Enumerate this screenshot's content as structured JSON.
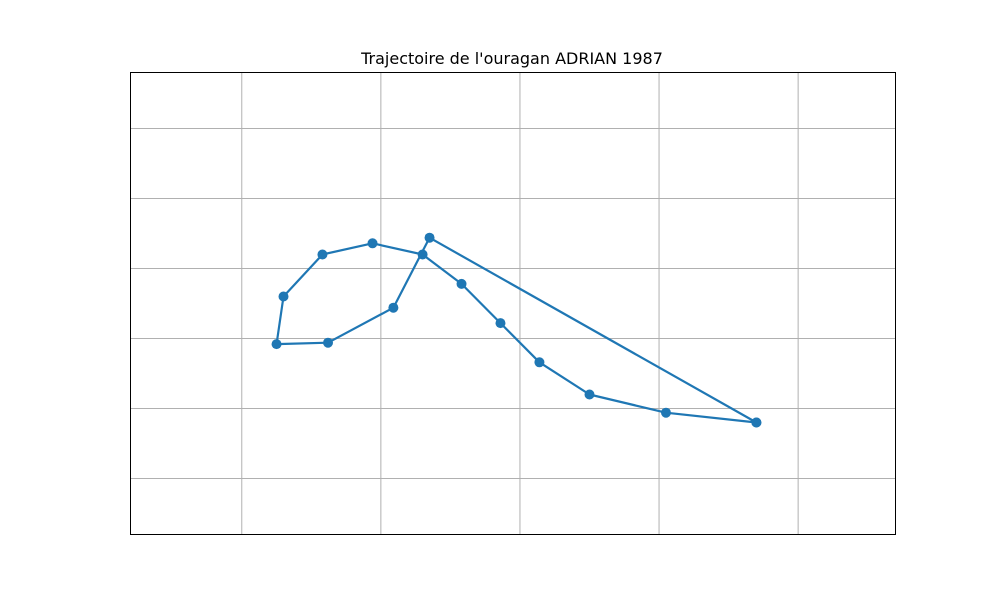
{
  "chart_data": {
    "type": "line",
    "title": "Trajectoire de l'ouragan ADRIAN 1987",
    "xlabel": "",
    "ylabel": "",
    "xlim": [
      -119.0,
      -113.5
    ],
    "ylim": [
      13.8,
      17.1
    ],
    "grid": true,
    "x_gridlines": [
      -118.2,
      -117.2,
      -116.2,
      -115.2,
      -114.2
    ],
    "y_gridlines": [
      14.2,
      14.7,
      15.2,
      15.7,
      16.2,
      16.7
    ],
    "series": [
      {
        "color": "#1f77b4",
        "marker": "circle",
        "points": [
          {
            "lon": -114.5,
            "lat": 14.6
          },
          {
            "lon": -115.15,
            "lat": 14.67
          },
          {
            "lon": -115.7,
            "lat": 14.8
          },
          {
            "lon": -116.06,
            "lat": 15.03
          },
          {
            "lon": -116.34,
            "lat": 15.31
          },
          {
            "lon": -116.62,
            "lat": 15.59
          },
          {
            "lon": -116.9,
            "lat": 15.8
          },
          {
            "lon": -117.26,
            "lat": 15.88
          },
          {
            "lon": -117.62,
            "lat": 15.8
          },
          {
            "lon": -117.9,
            "lat": 15.5
          },
          {
            "lon": -117.95,
            "lat": 15.16
          },
          {
            "lon": -117.58,
            "lat": 15.17
          },
          {
            "lon": -117.11,
            "lat": 15.42
          },
          {
            "lon": -116.85,
            "lat": 15.92
          },
          {
            "lon": -114.5,
            "lat": 14.6
          }
        ]
      }
    ]
  }
}
